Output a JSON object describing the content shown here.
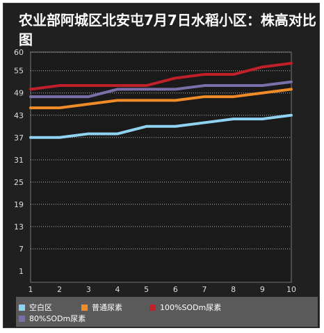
{
  "title": "农业部阿城区北安屯7月7日水稻小区：株高对比图",
  "chart_data": {
    "type": "line",
    "title": "农业部阿城区北安屯7月7日水稻小区：株高对比图",
    "xlabel": "",
    "ylabel": "",
    "x": [
      1,
      2,
      3,
      4,
      5,
      6,
      7,
      8,
      9,
      10
    ],
    "x_tick_labels": [
      "1",
      "2",
      "3",
      "4",
      "5",
      "6",
      "7",
      "8",
      "9",
      "10"
    ],
    "y_tick_labels": [
      "1",
      "7",
      "13",
      "19",
      "25",
      "31",
      "37",
      "43",
      "49",
      "55",
      "60"
    ],
    "y_ticks": [
      1,
      7,
      13,
      19,
      25,
      31,
      37,
      43,
      49,
      55,
      60
    ],
    "ylim": [
      -2,
      60
    ],
    "grid": true,
    "legend_position": "bottom",
    "series": [
      {
        "name": "空白区",
        "color": "#8fd3f0",
        "values": [
          37,
          37,
          38,
          38,
          40,
          40,
          41,
          42,
          42,
          43
        ]
      },
      {
        "name": "普通尿素",
        "color": "#f08c28",
        "values": [
          45,
          45,
          46,
          47,
          47,
          47,
          48,
          48,
          49,
          50
        ]
      },
      {
        "name": "100%SODm尿素",
        "color": "#c0202a",
        "values": [
          50,
          51,
          51,
          51,
          51,
          53,
          54,
          54,
          56,
          57
        ]
      },
      {
        "name": "80%SODm尿素",
        "color": "#7a6fa8",
        "values": [
          48,
          48,
          48,
          50,
          50,
          50,
          51,
          51,
          51,
          52
        ]
      }
    ]
  }
}
